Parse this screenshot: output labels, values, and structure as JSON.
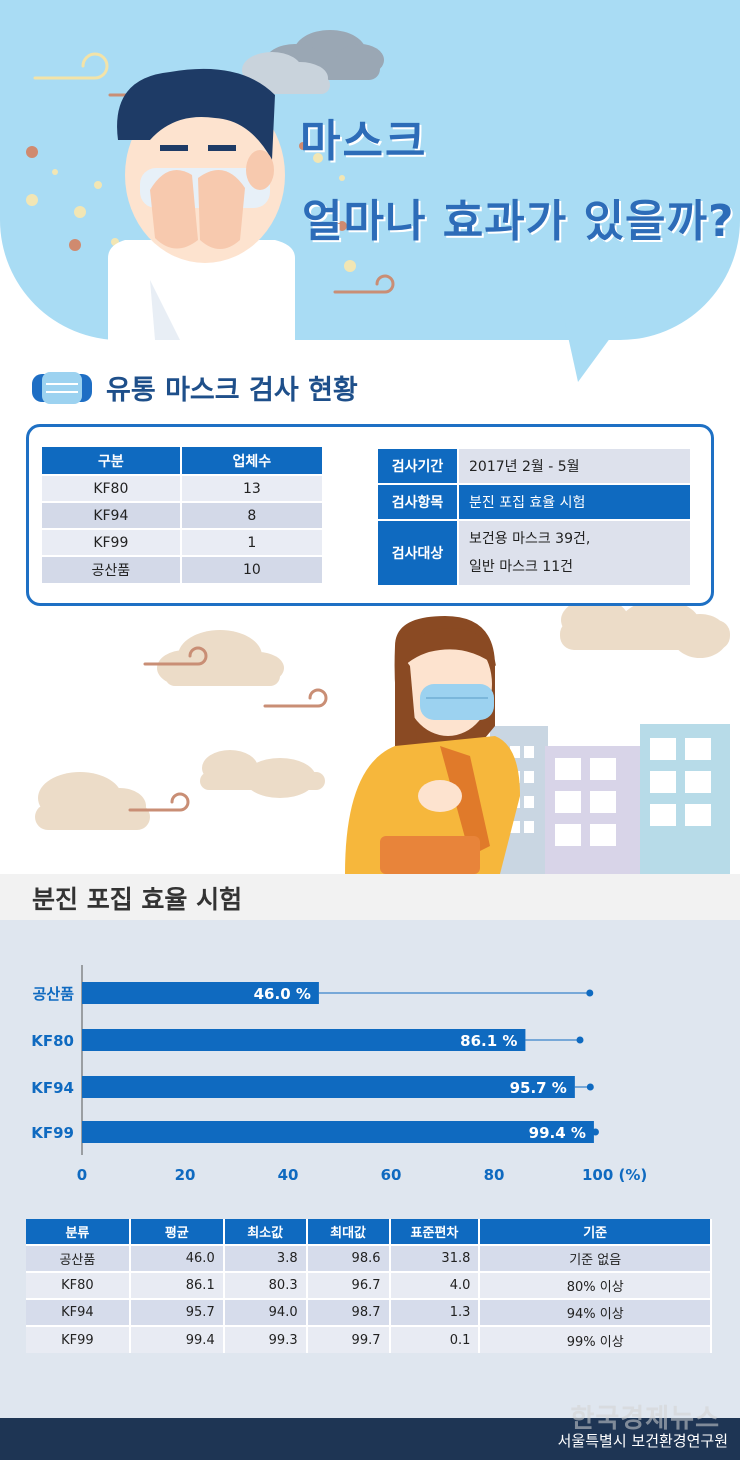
{
  "hero": {
    "title_line1": "마스크",
    "title_line2": "얼마나 효과가 있을까?"
  },
  "inspection": {
    "title": "유통 마스크 검사 현황",
    "company_table": {
      "headers": [
        "구분",
        "업체수"
      ],
      "rows": [
        [
          "KF80",
          "13"
        ],
        [
          "KF94",
          "8"
        ],
        [
          "KF99",
          "1"
        ],
        [
          "공산품",
          "10"
        ]
      ]
    },
    "info": [
      {
        "label": "검사기간",
        "value": "2017년 2월 - 5월"
      },
      {
        "label": "검사항목",
        "value": "분진 포집 효율 시험"
      },
      {
        "label": "검사대상",
        "value": "보건용 마스크 39건,",
        "value2": "일반 마스크 11건"
      }
    ]
  },
  "test": {
    "title": "분진 포집 효율 시험"
  },
  "chart_data": {
    "type": "bar",
    "orientation": "horizontal",
    "categories": [
      "공산품",
      "KF80",
      "KF94",
      "KF99"
    ],
    "values": [
      46.0,
      86.1,
      95.7,
      99.4
    ],
    "value_labels": [
      "46.0 %",
      "86.1 %",
      "95.7 %",
      "99.4 %"
    ],
    "max_values": [
      98.6,
      96.7,
      98.7,
      99.7
    ],
    "xlim": [
      0,
      100
    ],
    "xticks": [
      "0",
      "20",
      "40",
      "60",
      "80",
      "100 (%)"
    ],
    "grid": false,
    "bar_color": "#0f6ac0",
    "label_color": "#0f6ac0"
  },
  "result_table": {
    "headers": [
      "분류",
      "평균",
      "최소값",
      "최대값",
      "표준편차",
      "기준"
    ],
    "rows": [
      [
        "공산품",
        "46.0",
        "3.8",
        "98.6",
        "31.8",
        "기준 없음"
      ],
      [
        "KF80",
        "86.1",
        "80.3",
        "96.7",
        "4.0",
        "80% 이상"
      ],
      [
        "KF94",
        "95.7",
        "94.0",
        "98.7",
        "1.3",
        "94% 이상"
      ],
      [
        "KF99",
        "99.4",
        "99.3",
        "99.7",
        "0.1",
        "99% 이상"
      ]
    ]
  },
  "footer": {
    "source": "서울특별시 보건환경연구원",
    "watermark": "한국경제뉴스"
  }
}
